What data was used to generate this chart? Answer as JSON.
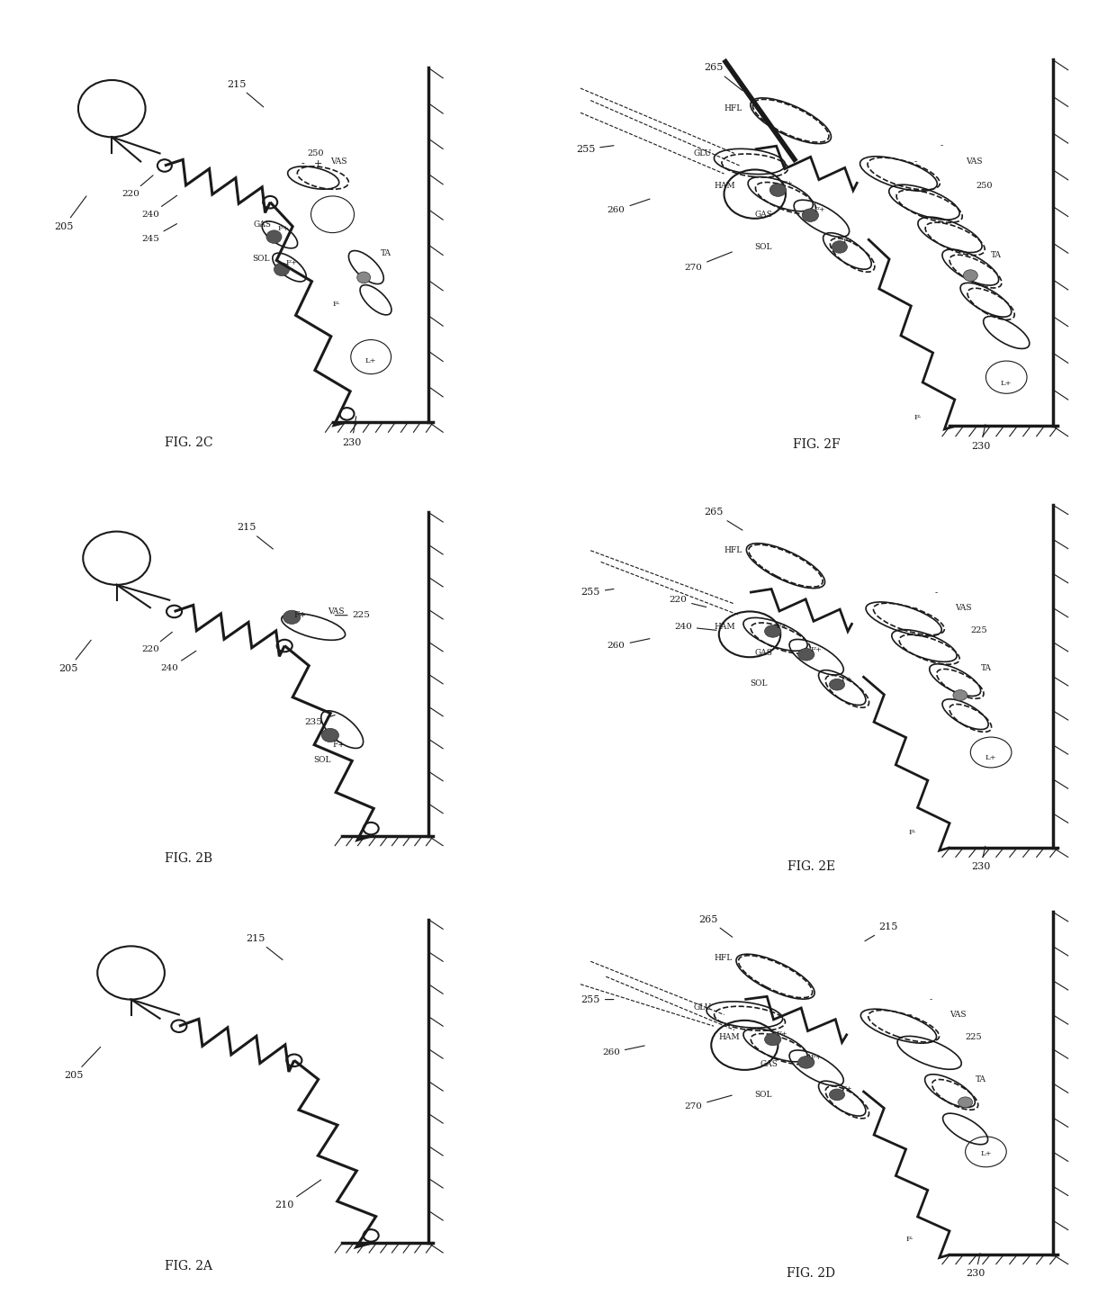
{
  "background_color": "#ffffff",
  "line_color": "#1a1a1a",
  "fig_labels": [
    "FIG. 2A",
    "FIG. 2B",
    "FIG. 2C",
    "FIG. 2D",
    "FIG. 2E",
    "FIG. 2F"
  ],
  "lw": 1.5,
  "lw_thin": 0.8,
  "lw_thick": 2.5
}
